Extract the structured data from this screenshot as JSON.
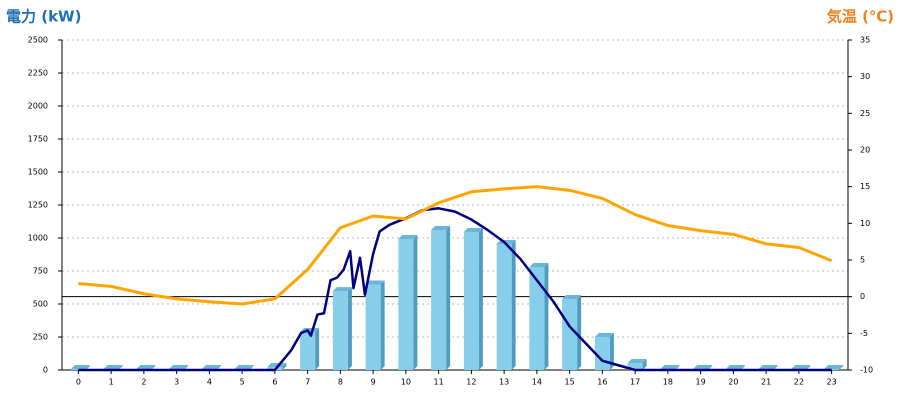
{
  "chart_data": {
    "type": "combo",
    "title_left": "電力 (kW)",
    "title_right": "気温 (℃)",
    "categories": [
      "0",
      "1",
      "2",
      "3",
      "4",
      "5",
      "6",
      "7",
      "8",
      "9",
      "10",
      "11",
      "12",
      "13",
      "14",
      "15",
      "16",
      "17",
      "18",
      "19",
      "20",
      "21",
      "22",
      "23"
    ],
    "ylim": [
      0,
      2500
    ],
    "yticks": [
      0,
      250,
      500,
      750,
      1000,
      1250,
      1500,
      1750,
      2000,
      2250,
      2500
    ],
    "y2lim": [
      -10,
      35
    ],
    "y2ticks": [
      -10,
      -5,
      0,
      5,
      10,
      15,
      20,
      25,
      30,
      35
    ],
    "grid": true,
    "series": [
      {
        "type": "bar",
        "color": "#87ceeb",
        "values": [
          0,
          0,
          0,
          0,
          0,
          0,
          15,
          280,
          590,
          640,
          985,
          1053,
          1038,
          947,
          773,
          530,
          242,
          45,
          0,
          0,
          0,
          0,
          0,
          0
        ]
      },
      {
        "type": "line",
        "color": "#000080",
        "x": [
          0,
          6,
          6.5,
          6.8,
          7.0,
          7.1,
          7.3,
          7.5,
          7.7,
          7.9,
          8.1,
          8.3,
          8.4,
          8.6,
          8.75,
          9.0,
          9.2,
          9.5,
          10,
          10.5,
          11,
          11.5,
          12,
          12.5,
          13,
          13.5,
          14,
          14.5,
          15,
          15.5,
          16,
          17,
          23
        ],
        "values": [
          0,
          0,
          150,
          280,
          300,
          260,
          420,
          430,
          680,
          700,
          760,
          900,
          620,
          850,
          570,
          880,
          1050,
          1100,
          1150,
          1210,
          1225,
          1200,
          1140,
          1060,
          970,
          840,
          680,
          520,
          330,
          200,
          70,
          0,
          0
        ]
      },
      {
        "type": "line",
        "axis": "y2",
        "color": "#ffa500",
        "values": [
          1.8,
          1.4,
          0.4,
          -0.3,
          -0.7,
          -1.0,
          -0.3,
          3.7,
          9.4,
          11,
          10.6,
          12.8,
          14.3,
          14.7,
          15,
          14.5,
          13.4,
          11.2,
          9.7,
          9,
          8.5,
          7.2,
          6.7,
          4.9
        ]
      }
    ]
  }
}
